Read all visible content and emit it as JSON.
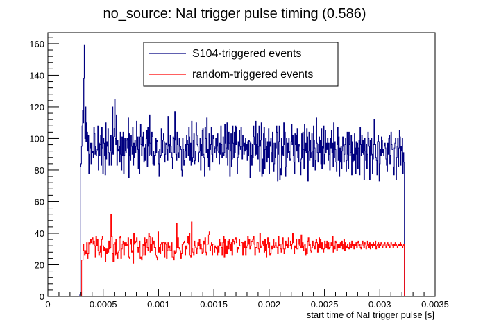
{
  "chart_data": {
    "type": "line",
    "style": "step-histogram",
    "title": "no_source: NaI trigger pulse timing (0.586)",
    "xlabel": "start time of NaI trigger pulse [s]",
    "ylabel": "",
    "xlim": [
      0,
      0.0035
    ],
    "ylim": [
      0,
      167
    ],
    "x_ticks": [
      0,
      0.0005,
      0.001,
      0.0015,
      0.002,
      0.0025,
      0.003,
      0.0035
    ],
    "x_tick_labels": [
      "0",
      "0.0005",
      "0.001",
      "0.0015",
      "0.002",
      "0.0025",
      "0.003",
      "0.0035"
    ],
    "y_ticks": [
      0,
      20,
      40,
      60,
      80,
      100,
      120,
      140,
      160
    ],
    "y_tick_labels": [
      "0",
      "20",
      "40",
      "60",
      "80",
      "100",
      "120",
      "140",
      "160"
    ],
    "grid": false,
    "legend_position": "top-center",
    "series": [
      {
        "name": "S104-triggered events",
        "color": "#000080",
        "x_start": 0.000283,
        "x_end": 0.003222,
        "values": [
          0,
          1,
          82,
          84,
          95,
          108,
          118,
          110,
          138,
          159,
          100,
          120,
          98,
          110,
          104,
          92,
          102,
          78,
          90,
          94,
          97,
          84,
          97,
          91,
          92,
          88,
          107,
          103,
          90,
          95,
          89,
          92,
          93,
          108,
          80,
          97,
          89,
          96,
          102,
          83,
          107,
          94,
          78,
          100,
          97,
          89,
          77,
          110,
          87,
          98,
          95,
          106,
          91,
          83,
          91,
          92,
          102,
          83,
          91,
          120,
          90,
          101,
          106,
          125,
          100,
          96,
          115,
          83,
          99,
          92,
          93,
          95,
          85,
          104,
          90,
          80,
          101,
          89,
          104,
          78,
          89,
          100,
          92,
          91,
          99,
          100,
          94,
          113,
          75,
          103,
          89,
          86,
          102,
          95,
          90,
          107,
          83,
          97,
          88,
          99,
          91,
          95,
          111,
          93,
          101,
          81,
          93,
          78,
          101,
          109,
          96,
          89,
          101,
          95,
          104,
          85,
          94,
          86,
          96,
          100,
          105,
          82,
          107,
          95,
          89,
          115,
          97,
          90,
          89,
          104,
          101,
          84,
          92,
          83,
          89,
          89,
          100,
          91,
          99,
          98,
          92,
          84,
          76,
          93,
          88,
          89,
          106,
          99,
          91,
          99,
          103,
          98,
          85,
          90,
          97,
          96,
          93,
          86,
          114,
          95,
          96,
          91,
          102,
          95,
          91,
          88,
          81,
          101,
          100,
          91,
          117,
          99,
          90,
          86,
          104,
          96,
          91,
          88,
          100,
          95,
          95,
          93,
          80,
          76,
          100,
          93,
          83,
          86,
          92,
          96,
          88,
          102,
          99,
          96,
          89,
          107,
          101,
          86,
          97,
          83,
          111,
          85,
          88,
          99,
          103,
          84,
          86,
          92,
          110,
          102,
          96,
          95,
          85,
          91,
          92,
          100,
          80,
          96,
          89,
          105,
          106,
          90,
          88,
          76,
          107,
          100,
          91,
          113,
          88,
          93,
          82,
          103,
          80,
          93,
          96,
          107,
          90,
          85,
          102,
          100,
          95,
          91,
          94,
          100,
          88,
          95,
          103,
          92,
          91,
          84,
          97,
          90,
          108,
          96,
          88,
          91,
          101,
          89,
          91,
          109,
          97,
          88,
          94,
          110,
          83,
          93,
          104,
          97,
          76,
          92,
          103,
          82,
          87,
          108,
          97,
          88,
          104,
          91,
          108,
          96,
          107,
          78,
          88,
          98,
          90,
          105,
          95,
          93,
          107,
          95,
          87,
          102,
          95,
          90,
          97,
          92,
          100,
          93,
          96,
          86,
          98,
          89,
          99,
          98,
          75,
          97,
          89,
          83,
          96,
          88,
          108,
          101,
          96,
          89,
          111,
          90,
          96,
          103,
          87,
          95,
          108,
          79,
          95,
          99,
          110,
          76,
          87,
          78,
          103,
          107,
          81,
          93,
          100,
          95,
          85,
          98,
          88,
          106,
          78,
          98,
          95,
          100,
          91,
          85,
          104,
          97,
          79,
          84,
          97,
          88,
          94,
          108,
          104,
          73,
          90,
          98,
          108,
          74,
          81,
          77,
          100,
          90,
          95,
          89,
          110,
          96,
          104,
          76,
          82,
          100,
          88,
          97,
          91,
          100,
          92,
          86,
          87,
          98,
          109,
          96,
          102,
          89,
          85,
          78,
          103,
          96,
          102,
          92,
          106,
          88,
          85,
          96,
          95,
          85,
          77,
          87,
          103,
          88,
          104,
          93,
          81,
          109,
          92,
          97,
          91,
          106,
          101,
          73,
          92,
          104,
          86,
          99,
          88,
          91,
          103,
          92,
          82,
          108,
          99,
          94,
          80,
          86,
          113,
          97,
          91,
          85,
          96,
          101,
          91,
          99,
          84,
          106,
          81,
          95,
          94,
          108,
          84,
          90,
          105,
          91,
          97,
          93,
          100,
          86,
          97,
          90,
          80,
          100,
          94,
          105,
          91,
          97,
          82,
          110,
          88,
          98,
          93,
          85,
          79,
          96,
          107,
          86,
          101,
          76,
          94,
          85,
          95,
          81,
          92,
          101,
          95,
          85,
          90,
          96,
          100,
          79,
          86,
          104,
          90,
          81,
          104,
          96,
          89,
          91,
          102,
          77,
          98,
          85,
          90,
          86,
          103,
          94,
          78,
          98,
          90,
          97,
          81,
          94,
          99,
          77,
          107,
          96,
          89,
          102,
          91,
          99,
          90,
          74,
          100,
          92,
          86,
          96,
          81,
          90,
          104,
          100,
          95,
          74,
          99,
          89,
          100,
          90,
          78,
          87,
          96,
          112,
          96,
          96,
          88,
          86,
          77,
          98,
          102,
          98,
          73,
          84,
          93,
          89,
          101,
          99,
          91,
          93,
          89,
          95,
          97,
          94,
          87,
          83,
          79,
          97,
          90,
          100,
          102,
          84,
          89,
          104,
          96,
          93,
          93,
          82,
          77,
          94,
          97,
          100,
          74,
          88,
          95,
          100,
          82,
          94,
          105,
          101,
          83,
          95,
          92,
          100,
          78,
          91,
          85
        ]
      },
      {
        "name": "random-triggered events",
        "color": "#ff0000",
        "x_start": 0.000305,
        "x_end": 0.003222,
        "values": [
          23,
          23,
          33,
          29,
          26,
          29,
          27,
          34,
          24,
          27,
          34,
          33,
          36,
          34,
          36,
          37,
          33,
          35,
          32,
          25,
          38,
          32,
          36,
          29,
          26,
          28,
          32,
          25,
          36,
          38,
          32,
          29,
          31,
          22,
          30,
          27,
          30,
          28,
          35,
          30,
          31,
          52,
          38,
          27,
          22,
          33,
          34,
          26,
          36,
          27,
          24,
          28,
          29,
          37,
          38,
          24,
          30,
          33,
          35,
          26,
          34,
          32,
          34,
          32,
          33,
          37,
          25,
          24,
          33,
          36,
          28,
          29,
          21,
          40,
          33,
          34,
          35,
          37,
          31,
          28,
          31,
          35,
          24,
          25,
          23,
          26,
          33,
          32,
          37,
          26,
          34,
          36,
          31,
          29,
          40,
          38,
          28,
          33,
          29,
          37,
          33,
          35,
          31,
          31,
          26,
          25,
          23,
          41,
          28,
          31,
          27,
          33,
          34,
          29,
          34,
          34,
          25,
          34,
          33,
          24,
          29,
          34,
          31,
          32,
          29,
          29,
          34,
          25,
          25,
          23,
          29,
          27,
          28,
          46,
          31,
          37,
          31,
          30,
          29,
          24,
          27,
          33,
          33,
          34,
          35,
          26,
          32,
          30,
          34,
          38,
          33,
          40,
          26,
          25,
          47,
          30,
          28,
          26,
          35,
          32,
          31,
          27,
          30,
          34,
          32,
          36,
          30,
          33,
          30,
          27,
          28,
          35,
          33,
          37,
          28,
          26,
          33,
          33,
          39,
          41,
          29,
          32,
          34,
          26,
          33,
          33,
          28,
          32,
          31,
          30,
          26,
          32,
          28,
          36,
          32,
          34,
          31,
          26,
          34,
          38,
          25,
          36,
          27,
          32,
          27,
          35,
          30,
          36,
          33,
          29,
          34,
          26,
          36,
          35,
          33,
          36,
          37,
          34,
          28,
          31,
          30,
          36,
          32,
          32,
          34,
          34,
          26,
          34,
          31,
          35,
          26,
          31,
          32,
          38,
          33,
          36,
          30,
          32,
          35,
          35,
          36,
          38,
          33,
          26,
          31,
          31,
          34,
          34,
          30,
          28,
          40,
          31,
          32,
          33,
          35,
          32,
          28,
          36,
          29,
          25,
          33,
          37,
          31,
          34,
          26,
          27,
          32,
          30,
          32,
          36,
          31,
          32,
          34,
          32,
          31,
          27,
          38,
          32,
          33,
          30,
          28,
          33,
          37,
          30,
          27,
          30,
          35,
          32,
          33,
          31,
          37,
          32,
          32,
          35,
          30,
          33,
          40,
          34,
          27,
          32,
          31,
          36,
          30,
          30,
          33,
          36,
          32,
          31,
          39,
          31,
          34,
          29,
          32,
          33,
          26,
          30,
          27,
          35,
          37,
          32,
          33,
          29,
          28,
          31,
          35,
          32,
          32,
          30,
          34,
          36,
          34,
          28,
          33,
          37,
          31,
          36,
          30,
          34,
          30,
          28,
          30,
          35,
          33,
          31,
          35,
          30,
          34,
          30,
          31,
          32,
          34,
          32,
          38,
          28,
          32,
          30,
          35,
          34,
          29,
          33,
          31,
          33,
          31,
          34,
          32,
          35,
          30,
          33,
          36,
          29,
          34,
          32,
          31,
          33,
          31,
          30,
          34,
          33,
          31,
          35,
          32,
          33,
          30,
          33,
          32,
          34,
          31,
          34,
          35,
          32,
          33,
          31,
          30,
          33,
          35,
          32,
          31,
          34,
          33,
          30,
          32,
          35,
          33,
          31,
          34,
          30,
          32,
          33,
          31,
          34,
          32,
          33,
          35,
          30,
          32,
          33,
          34,
          31,
          33,
          32,
          34,
          33,
          31,
          32,
          33,
          34,
          32,
          31,
          33,
          34,
          32,
          33,
          31,
          32,
          34,
          33,
          32,
          31,
          33,
          32,
          34,
          33,
          32,
          31,
          33,
          32,
          33,
          34,
          32,
          33,
          31,
          32,
          33
        ]
      }
    ]
  }
}
